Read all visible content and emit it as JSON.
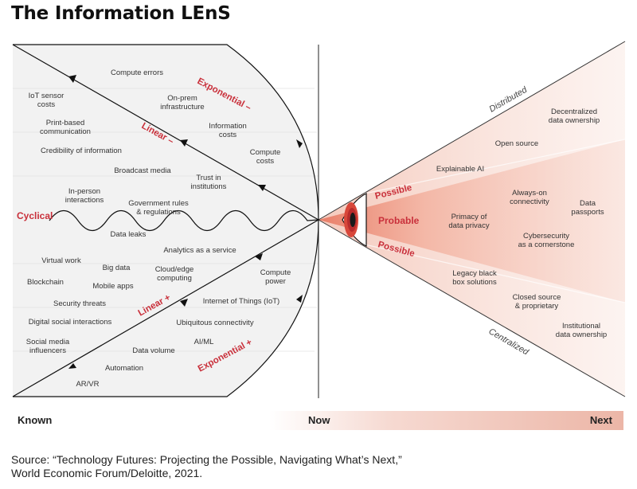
{
  "title": "The Information LEnS",
  "left_labels": {
    "compute_errors": "Compute errors",
    "iot_sensor_1": "IoT sensor",
    "iot_sensor_2": "costs",
    "print_1": "Print-based",
    "print_2": "communication",
    "credibility": "Credibility of information",
    "onprem_1": "On-prem",
    "onprem_2": "infrastructure",
    "infocost_1": "Information",
    "infocost_2": "costs",
    "compcost_1": "Compute",
    "compcost_2": "costs",
    "broadcast": "Broadcast media",
    "trust_1": "Trust in",
    "trust_2": "institutions",
    "inperson_1": "In-person",
    "inperson_2": "interactions",
    "govt_1": "Government rules",
    "govt_2": "& regulations",
    "data_leaks": "Data leaks",
    "analytics": "Analytics as a service",
    "virtual_work": "Virtual work",
    "big_data": "Big data",
    "cloud_1": "Cloud/edge",
    "cloud_2": "computing",
    "comppower_1": "Compute",
    "comppower_2": "power",
    "blockchain": "Blockchain",
    "mobile_apps": "Mobile apps",
    "security_threats": "Security threats",
    "iot": "Internet of Things (IoT)",
    "digital_social": "Digital social interactions",
    "ubiquitous": "Ubiquitous connectivity",
    "social_1": "Social media",
    "social_2": "influencers",
    "aiml": "AI/ML",
    "data_volume": "Data volume",
    "automation": "Automation",
    "arvr": "AR/VR"
  },
  "trend_labels": {
    "exponential_minus": "Exponential –",
    "linear_minus": "Linear –",
    "cyclical": "Cyclical",
    "linear_plus": "Linear +",
    "exponential_plus": "Exponential +"
  },
  "right_labels": {
    "distributed": "Distributed",
    "centralized": "Centralized",
    "possible": "Possible",
    "probable": "Probable",
    "decent_1": "Decentralized",
    "decent_2": "data ownership",
    "open_source": "Open source",
    "explainable_ai": "Explainable AI",
    "alwayson_1": "Always-on",
    "alwayson_2": "connectivity",
    "passports_1": "Data",
    "passports_2": "passports",
    "primacy_1": "Primacy of",
    "primacy_2": "data privacy",
    "cyber_1": "Cybersecurity",
    "cyber_2": "as a cornerstone",
    "legacy_1": "Legacy black",
    "legacy_2": "box solutions",
    "closed_1": "Closed source",
    "closed_2": "& proprietary",
    "inst_1": "Institutional",
    "inst_2": "data ownership"
  },
  "axis": {
    "known": "Known",
    "now": "Now",
    "next": "Next"
  },
  "source": {
    "line1": "Source: “Technology Futures: Projecting the Possible, Navigating What’s Next,”",
    "line2": "World Economic Forum/Deloitte, 2021."
  },
  "colors": {
    "accent_red": "#c9303b",
    "left_fill": "#f2f2f2",
    "cone_pink": "#f3c3b5"
  }
}
